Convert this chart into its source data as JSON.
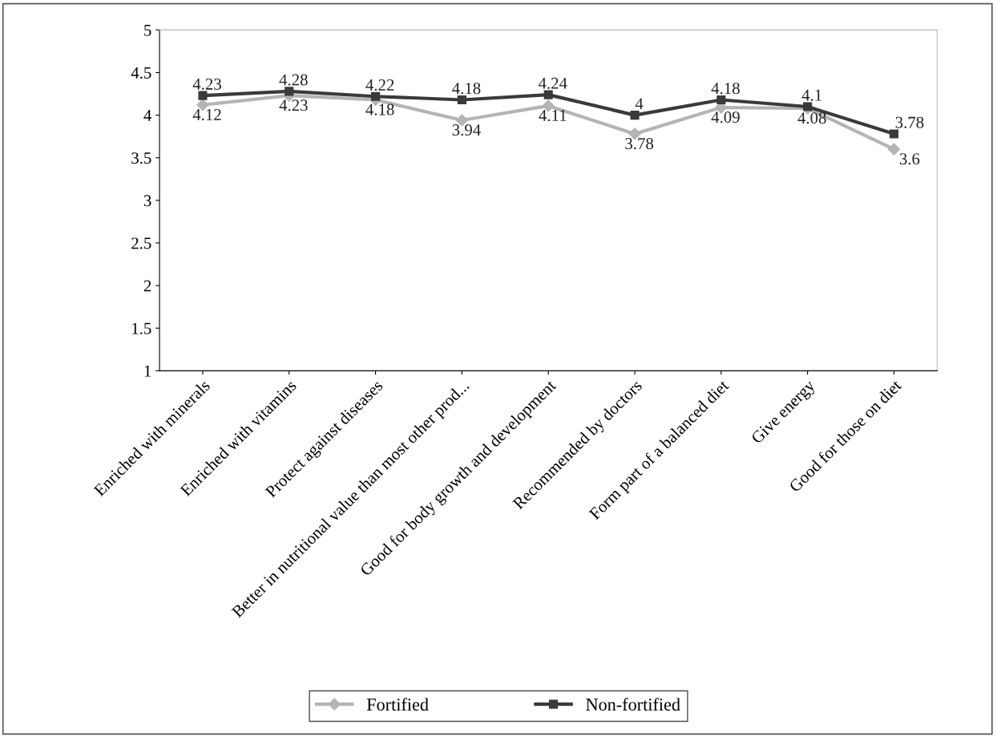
{
  "chart_data": {
    "type": "line",
    "categories": [
      "Enriched with minerals",
      "Enriched with vitamins",
      "Protect against diseases",
      "Better in nutritional value than most other prod...",
      "Good for body growth and development",
      "Recommended by doctors",
      "Form part of a balanced diet",
      "Give energy",
      "Good for those on diet"
    ],
    "series": [
      {
        "name": "Fortified",
        "color": "#b4b4b4",
        "marker": "diamond",
        "values": [
          4.12,
          4.23,
          4.18,
          3.94,
          4.11,
          3.78,
          4.09,
          4.08,
          3.6
        ]
      },
      {
        "name": "Non-fortified",
        "color": "#3a3a3a",
        "marker": "square",
        "values": [
          4.23,
          4.28,
          4.22,
          4.18,
          4.24,
          4,
          4.18,
          4.1,
          3.78
        ]
      }
    ],
    "ylim": [
      1,
      5
    ],
    "yticks": [
      1,
      1.5,
      2,
      2.5,
      3,
      3.5,
      4,
      4.5,
      5
    ],
    "grid": false,
    "legend": "bottom",
    "data_labels": true,
    "line_style": "solid"
  }
}
